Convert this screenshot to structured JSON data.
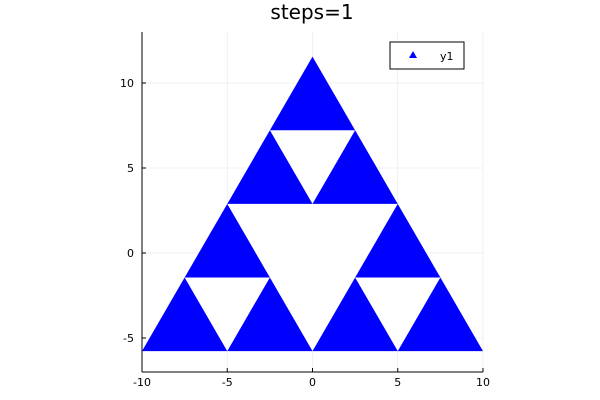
{
  "chart_data": {
    "type": "scatter",
    "title": "steps=1",
    "xlabel": "",
    "ylabel": "",
    "xlim": [
      -10,
      10
    ],
    "ylim": [
      -7,
      13
    ],
    "xticks": [
      -10,
      -5,
      0,
      5,
      10
    ],
    "xtick_labels": [
      "-10",
      "-5",
      "0",
      "5",
      "10"
    ],
    "yticks": [
      -5,
      0,
      5,
      10
    ],
    "ytick_labels": [
      "-5",
      "0",
      "5",
      "10"
    ],
    "grid": true,
    "legend_position": "top-right",
    "series": [
      {
        "name": "y1",
        "color": "#0000ff",
        "marker": "triangle",
        "rendered_as": "sierpinski-triangle-fill",
        "outer_triangle": [
          [
            -10,
            -5.77
          ],
          [
            10,
            -5.77
          ],
          [
            0,
            11.55
          ]
        ],
        "holes": [
          [
            [
              -5,
              2.89
            ],
            [
              5,
              2.89
            ],
            [
              0,
              -5.77
            ]
          ],
          [
            [
              -2.5,
              7.22
            ],
            [
              2.5,
              7.22
            ],
            [
              0,
              2.89
            ]
          ],
          [
            [
              -7.5,
              -1.44
            ],
            [
              -2.5,
              -1.44
            ],
            [
              -5,
              -5.77
            ]
          ],
          [
            [
              2.5,
              -1.44
            ],
            [
              7.5,
              -1.44
            ],
            [
              5,
              -5.77
            ]
          ]
        ]
      }
    ]
  }
}
